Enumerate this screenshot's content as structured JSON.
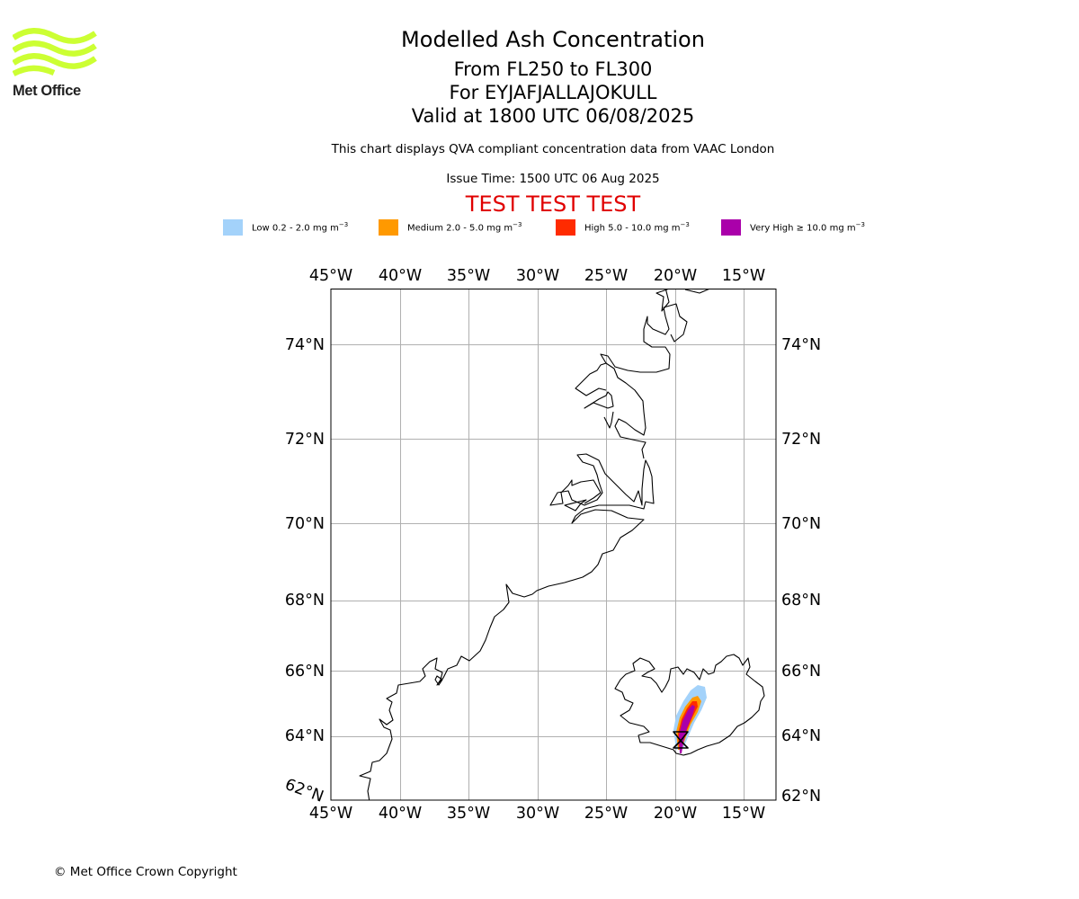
{
  "brand": {
    "name": "Met Office",
    "color": "#ccff33"
  },
  "header": {
    "title": "Modelled Ash Concentration",
    "levels": "From FL250 to FL300",
    "volcano": "For EYJAFJALLAJOKULL",
    "valid": "Valid at 1800 UTC 06/08/2025",
    "description": "This chart displays QVA compliant concentration data from VAAC London",
    "issue_time": "Issue Time: 1500 UTC 06 Aug 2025",
    "test_banner": "TEST TEST TEST"
  },
  "legend": [
    {
      "label": "Low 0.2 - 2.0 mg m",
      "exp": "−3",
      "color": "#a3d2fa"
    },
    {
      "label": "Medium 2.0 - 5.0 mg m",
      "exp": "−3",
      "color": "#ff9900"
    },
    {
      "label": "High 5.0 - 10.0 mg m",
      "exp": "−3",
      "color": "#ff2b00"
    },
    {
      "label": "Very High  ≥  10.0 mg m",
      "exp": "−3",
      "color": "#aa00aa"
    }
  ],
  "map": {
    "longitude_labels": [
      "45°W",
      "40°W",
      "35°W",
      "30°W",
      "25°W",
      "20°W",
      "15°W"
    ],
    "latitude_labels": [
      "74°N",
      "72°N",
      "70°N",
      "68°N",
      "66°N",
      "64°N",
      "62°N"
    ],
    "volcano_marker": "volcano-location-icon",
    "grid": true
  },
  "footer": {
    "copyright": "© Met Office Crown Copyright"
  }
}
